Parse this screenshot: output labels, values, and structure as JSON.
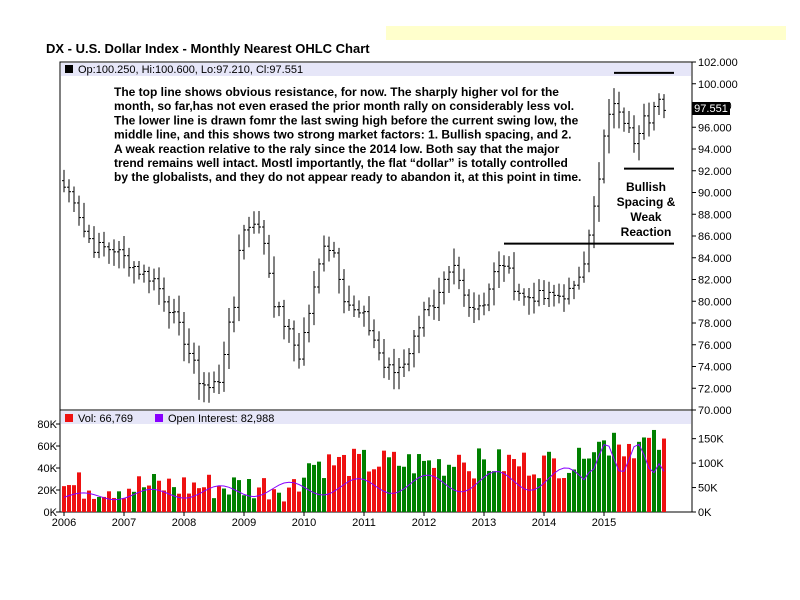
{
  "header": {
    "title": "DX - U.S. Dollar Index - Monthly Nearest OHLC Chart"
  },
  "price_panel": {
    "ohlc_label": "Op:100.250, Hi:100.600, Lo:97.210, Cl:97.551",
    "last_price_label": "97.551"
  },
  "annotation": {
    "lines": [
      "The top line shows obvious resistance, for now.  The sharply higher vol for the",
      "month, so far,has not even erased the prior month rally on considerably less vol.",
      "The lower line is drawn fomr the last swing high before the current swing low, the",
      "middle line, and this shows two strong market factors:  1. Bullish spacing, and 2.",
      "A weak reaction relative to the raly since the 2014 low.  Both say that the major",
      "trend remains well intact.  Mostl importantly, the flat “dollar” is totally controlled",
      "by the globalists, and they do not appear ready to abandon it, at this point in time."
    ],
    "side_note": [
      "Bullish",
      "Spacing  &",
      "Weak",
      "Reaction"
    ]
  },
  "volume_panel": {
    "vol_label": "Vol: 66,769",
    "oi_label": "Open Interest: 82,988"
  },
  "colors": {
    "panel_bg": "#ffffff",
    "legend_bg": "#e6e6f8",
    "up_volume": "#008000",
    "down_volume": "#ee1111",
    "open_interest": "#8800ff",
    "last_price_tag": "#000000"
  },
  "chart_data": {
    "type": "ohlc",
    "interval": "monthly",
    "x_ticks": [
      "2006",
      "2007",
      "2008",
      "2009",
      "2010",
      "2011",
      "2012",
      "2013",
      "2014",
      "2015"
    ],
    "x_tick_months": [
      0,
      12,
      24,
      36,
      48,
      60,
      72,
      84,
      96,
      108
    ],
    "y_ticks": [
      "70.000",
      "72.000",
      "74.000",
      "76.000",
      "78.000",
      "80.000",
      "82.000",
      "84.000",
      "86.000",
      "88.000",
      "90.000",
      "92.000",
      "94.000",
      "96.000",
      "98.000",
      "100.000",
      "102.000"
    ],
    "ylim": [
      70,
      102
    ],
    "anchors": [
      [
        0,
        90.5
      ],
      [
        2,
        89.5
      ],
      [
        4,
        86.5
      ],
      [
        6,
        85.0
      ],
      [
        10,
        84.8
      ],
      [
        12,
        84.0
      ],
      [
        15,
        82.8
      ],
      [
        18,
        82.0
      ],
      [
        21,
        79.5
      ],
      [
        24,
        76.5
      ],
      [
        27,
        72.8
      ],
      [
        29,
        72.0
      ],
      [
        31,
        72.8
      ],
      [
        32,
        75.5
      ],
      [
        34,
        79.5
      ],
      [
        35,
        85.0
      ],
      [
        36,
        86.5
      ],
      [
        38,
        87.5
      ],
      [
        40,
        85.5
      ],
      [
        42,
        80.0
      ],
      [
        45,
        77.0
      ],
      [
        47,
        75.0
      ],
      [
        48,
        77.0
      ],
      [
        50,
        81.0
      ],
      [
        52,
        85.5
      ],
      [
        54,
        84.5
      ],
      [
        56,
        80.5
      ],
      [
        58,
        79.0
      ],
      [
        60,
        78.5
      ],
      [
        62,
        76.5
      ],
      [
        64,
        74.0
      ],
      [
        66,
        73.5
      ],
      [
        68,
        74.5
      ],
      [
        70,
        76.5
      ],
      [
        72,
        79.5
      ],
      [
        74,
        79.0
      ],
      [
        76,
        81.5
      ],
      [
        78,
        83.0
      ],
      [
        80,
        80.5
      ],
      [
        82,
        79.5
      ],
      [
        84,
        80.0
      ],
      [
        86,
        82.5
      ],
      [
        88,
        83.5
      ],
      [
        90,
        81.5
      ],
      [
        92,
        80.3
      ],
      [
        94,
        80.5
      ],
      [
        96,
        80.3
      ],
      [
        99,
        80.5
      ],
      [
        102,
        81.0
      ],
      [
        104,
        84.0
      ],
      [
        105,
        86.5
      ],
      [
        106,
        88.5
      ],
      [
        107,
        91.0
      ],
      [
        108,
        95.0
      ],
      [
        110,
        98.5
      ],
      [
        111,
        97.0
      ],
      [
        113,
        96.5
      ],
      [
        114,
        95.0
      ],
      [
        116,
        97.0
      ],
      [
        117,
        96.0
      ],
      [
        119,
        99.0
      ],
      [
        120,
        97.55
      ]
    ],
    "volume": {
      "ylim": [
        0,
        80000
      ],
      "y_ticks_left": [
        "0K",
        "20K",
        "40K",
        "60K",
        "80K"
      ],
      "y_ticks_right": [
        "0K",
        "50K",
        "100K",
        "150K"
      ],
      "oi_max": 180000,
      "last_volume": 66769,
      "last_open_interest": 82988
    },
    "horizontal_lines": [
      {
        "name": "top-resistance",
        "value": 101.0,
        "from_month": 110,
        "to_month": 120
      },
      {
        "name": "swing-low",
        "value": 92.2,
        "from_month": 112,
        "to_month": 120
      },
      {
        "name": "prior-swing-high",
        "value": 85.3,
        "from_month": 88,
        "to_month": 120
      }
    ]
  }
}
